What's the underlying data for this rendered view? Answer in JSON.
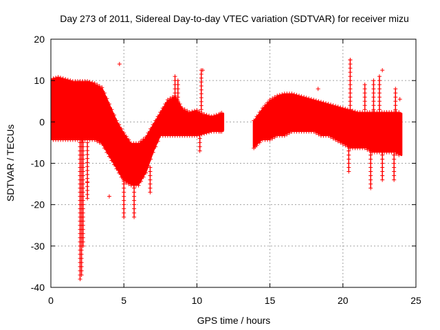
{
  "chart_data": {
    "type": "scatter",
    "title": "Day 273 of 2011, Sidereal Day-to-day VTEC variation (SDTVAR) for receiver mizu",
    "xlabel": "GPS time / hours",
    "ylabel": "SDTVAR / TECUs",
    "xlim": [
      0,
      25
    ],
    "ylim": [
      -40,
      20
    ],
    "xticks": [
      0,
      5,
      10,
      15,
      20,
      25
    ],
    "yticks": [
      -40,
      -30,
      -20,
      -10,
      0,
      10,
      20
    ],
    "grid": true,
    "marker": "+",
    "color": "#ff0000",
    "envelope": {
      "description": "approximate upper/lower extent of the dense point cloud",
      "segments": [
        {
          "x": [
            0,
            0.5,
            1,
            1.5,
            2,
            2.5,
            3,
            3.5,
            4,
            4.5,
            5,
            5.5,
            6,
            6.5,
            7,
            7.5,
            8,
            8.5,
            9,
            9.5,
            10,
            10.5,
            11,
            11.5,
            11.8
          ],
          "upper": [
            10,
            10.5,
            10,
            9.5,
            9.5,
            9.5,
            9,
            8,
            4,
            0,
            -3,
            -5.5,
            -5.5,
            -4,
            -1,
            2,
            5,
            6,
            3,
            2,
            2.5,
            1.5,
            1,
            1.5,
            2
          ],
          "lower": [
            -4,
            -4,
            -4,
            -4,
            -4,
            -4,
            -4,
            -5,
            -8,
            -11,
            -14,
            -15,
            -15,
            -12,
            -7,
            -3,
            -3,
            -3,
            -3,
            -3,
            -3,
            -2.5,
            -2,
            -2,
            -2
          ]
        },
        {
          "x": [
            13.9,
            14.5,
            15,
            15.5,
            16,
            16.5,
            17,
            17.5,
            18,
            18.5,
            19,
            19.5,
            20,
            20.5,
            21,
            21.5,
            22,
            22.5,
            23,
            23.5,
            24
          ],
          "upper": [
            0,
            3,
            5,
            6,
            6.5,
            6.5,
            6,
            5.5,
            5,
            4.5,
            4,
            3.5,
            3,
            2.5,
            2,
            2,
            2,
            2,
            2,
            2,
            2
          ],
          "lower": [
            -6,
            -4,
            -4,
            -3,
            -3,
            -2,
            -2,
            -2,
            -2,
            -3,
            -3,
            -4,
            -5,
            -6,
            -6,
            -6,
            -7,
            -7,
            -7,
            -7,
            -8
          ]
        }
      ]
    },
    "spikes": [
      {
        "x": 2.0,
        "ymin": -38,
        "ymax": -2
      },
      {
        "x": 2.1,
        "ymin": -37,
        "ymax": -2
      },
      {
        "x": 2.2,
        "ymin": -30,
        "ymax": -2
      },
      {
        "x": 2.5,
        "ymin": -18.5,
        "ymax": -5
      },
      {
        "x": 5.0,
        "ymin": -23,
        "ymax": -12
      },
      {
        "x": 5.7,
        "ymin": -23,
        "ymax": -13
      },
      {
        "x": 6.8,
        "ymin": -17,
        "ymax": -11
      },
      {
        "x": 8.5,
        "ymin": 3,
        "ymax": 11
      },
      {
        "x": 8.7,
        "ymin": 2,
        "ymax": 10
      },
      {
        "x": 10.3,
        "ymin": 3,
        "ymax": 12.5
      },
      {
        "x": 10.2,
        "ymin": -7,
        "ymax": -2
      },
      {
        "x": 14.0,
        "ymin": -6,
        "ymax": -1
      },
      {
        "x": 20.5,
        "ymin": 3,
        "ymax": 15
      },
      {
        "x": 20.4,
        "ymin": -12,
        "ymax": -5
      },
      {
        "x": 21.5,
        "ymin": 3,
        "ymax": 9
      },
      {
        "x": 21.9,
        "ymin": -16,
        "ymax": -6
      },
      {
        "x": 22.1,
        "ymin": 2,
        "ymax": 10
      },
      {
        "x": 22.5,
        "ymin": 2,
        "ymax": 11
      },
      {
        "x": 22.7,
        "ymin": -14,
        "ymax": -6
      },
      {
        "x": 23.5,
        "ymin": -14,
        "ymax": -7
      },
      {
        "x": 23.6,
        "ymin": 1,
        "ymax": 8
      }
    ],
    "outliers": [
      {
        "x": 4.7,
        "y": 14
      },
      {
        "x": 4.0,
        "y": -18
      },
      {
        "x": 2.5,
        "y": -14.5
      },
      {
        "x": 20.5,
        "y": 15
      },
      {
        "x": 22.7,
        "y": 12.5
      },
      {
        "x": 23.9,
        "y": 5.5
      },
      {
        "x": 18.3,
        "y": 8
      },
      {
        "x": 10.4,
        "y": 12.5
      }
    ]
  }
}
